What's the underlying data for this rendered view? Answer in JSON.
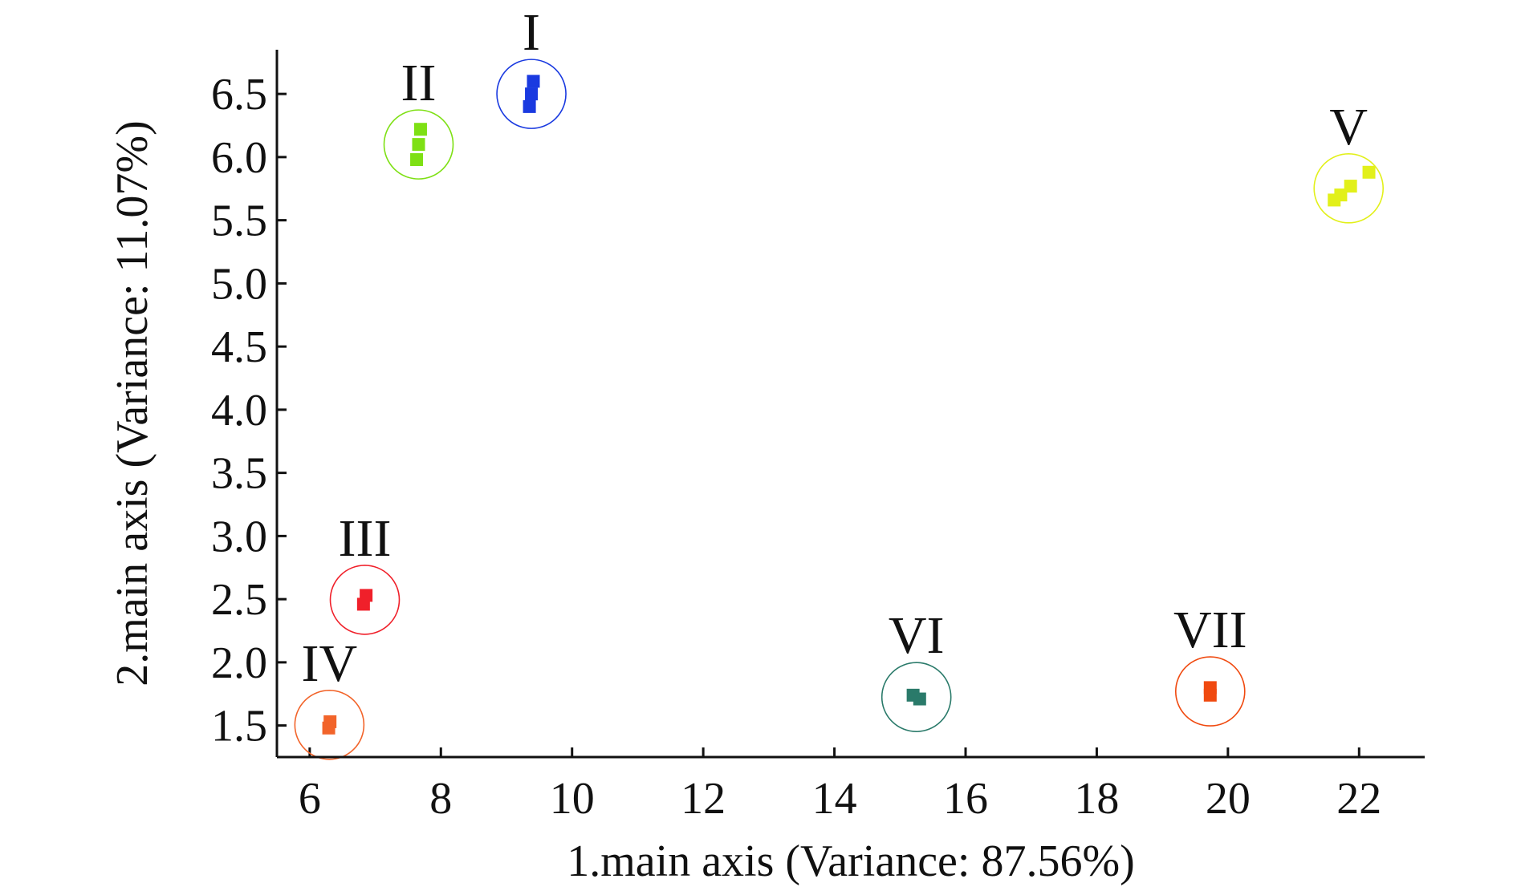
{
  "chart_data": {
    "type": "scatter",
    "title": "",
    "xlabel": "1.main axis (Variance: 87.56%)",
    "ylabel": "2.main axis (Variance: 11.07%)",
    "xlim": [
      5.5,
      23
    ],
    "ylim": [
      1.25,
      6.85
    ],
    "x_ticks": [
      6,
      8,
      10,
      12,
      14,
      16,
      18,
      20,
      22
    ],
    "x_tick_labels": [
      "6",
      "8",
      "10",
      "12",
      "14",
      "16",
      "18",
      "20",
      "22"
    ],
    "y_ticks": [
      1.5,
      2.0,
      2.5,
      3.0,
      3.5,
      4.0,
      4.5,
      5.0,
      5.5,
      6.0,
      6.5
    ],
    "y_tick_labels": [
      "1.5",
      "2.0",
      "2.5",
      "3.0",
      "3.5",
      "4.0",
      "4.5",
      "5.0",
      "5.5",
      "6.0",
      "6.5"
    ],
    "grid": false,
    "legend": false,
    "clusters": [
      {
        "label": "I",
        "color": "#1a3ae0",
        "points": [
          [
            9.35,
            6.4
          ],
          [
            9.38,
            6.5
          ],
          [
            9.41,
            6.6
          ]
        ]
      },
      {
        "label": "II",
        "color": "#7ee014",
        "points": [
          [
            7.63,
            5.98
          ],
          [
            7.66,
            6.1
          ],
          [
            7.69,
            6.22
          ]
        ]
      },
      {
        "label": "III",
        "color": "#f0202a",
        "points": [
          [
            6.82,
            2.46
          ],
          [
            6.86,
            2.53
          ]
        ]
      },
      {
        "label": "IV",
        "color": "#f2642a",
        "points": [
          [
            6.29,
            1.48
          ],
          [
            6.31,
            1.53
          ]
        ]
      },
      {
        "label": "V",
        "color": "#e2f01a",
        "points": [
          [
            21.62,
            5.66
          ],
          [
            21.72,
            5.7
          ],
          [
            21.87,
            5.77
          ],
          [
            22.15,
            5.88
          ]
        ]
      },
      {
        "label": "VI",
        "color": "#2a7a6a",
        "points": [
          [
            15.2,
            1.74
          ],
          [
            15.3,
            1.71
          ]
        ]
      },
      {
        "label": "VII",
        "color": "#f04a10",
        "points": [
          [
            19.73,
            1.74
          ],
          [
            19.73,
            1.8
          ]
        ]
      }
    ]
  }
}
